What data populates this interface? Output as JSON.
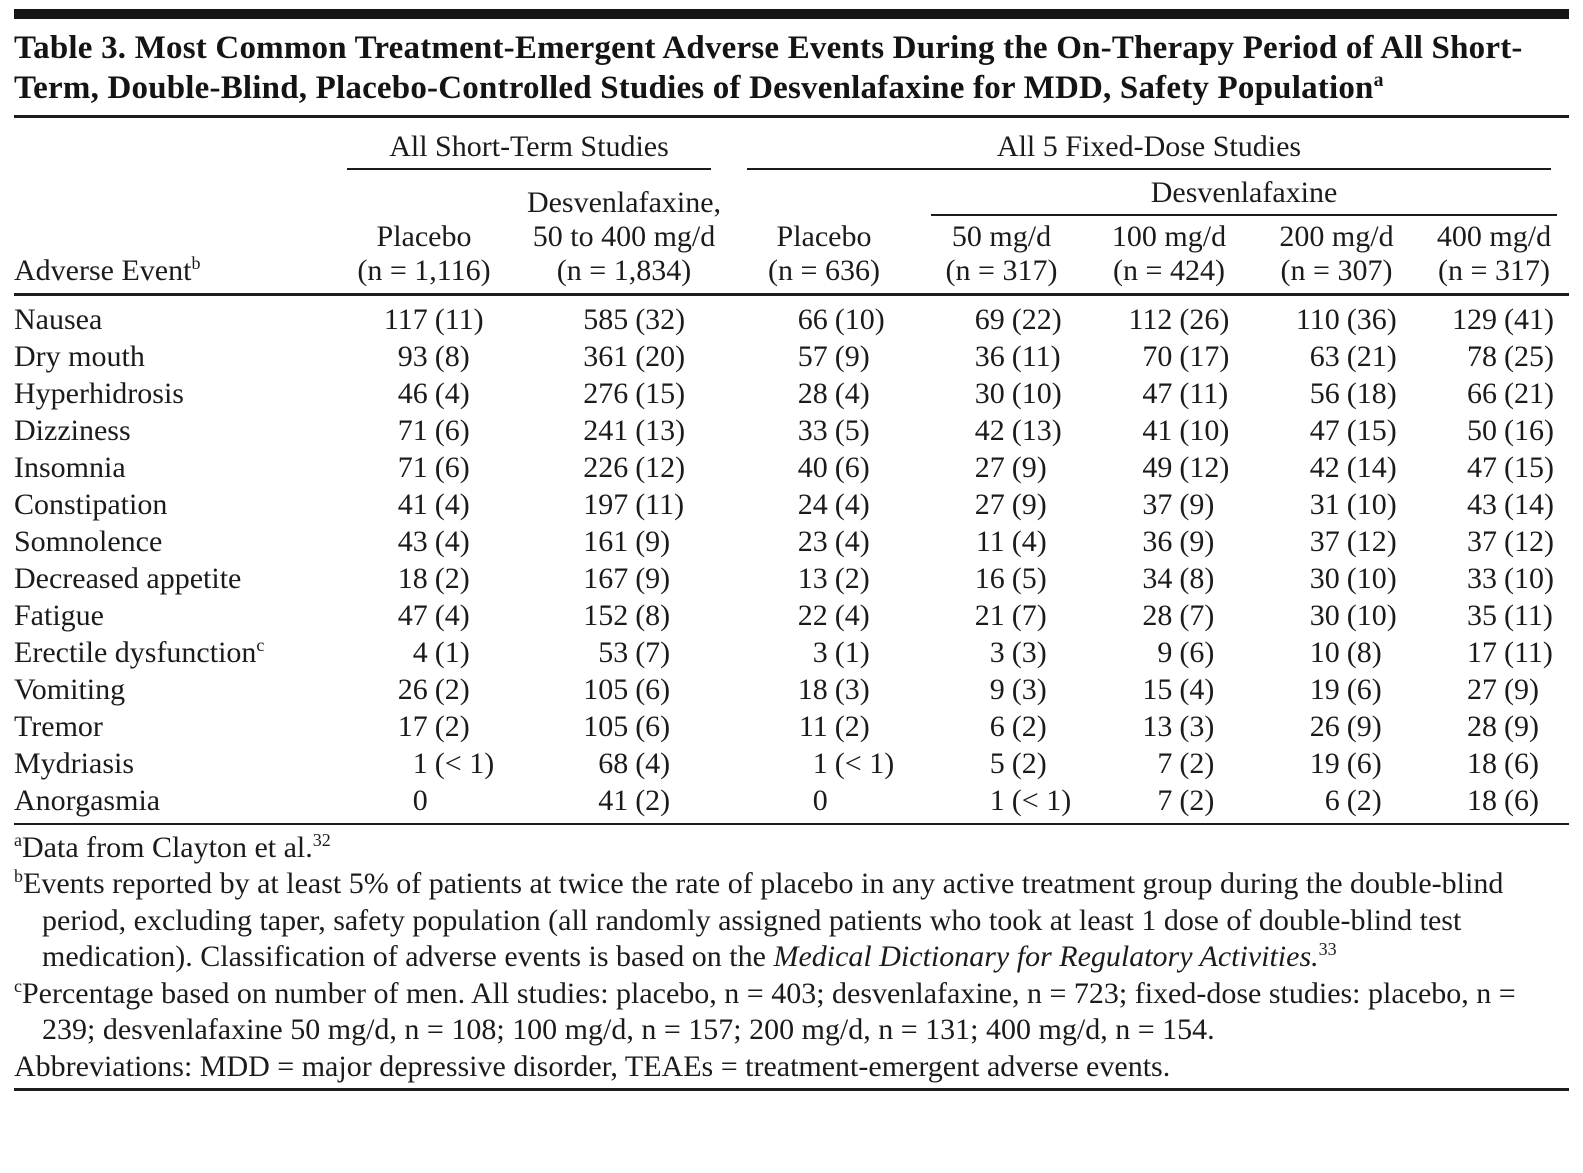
{
  "title": {
    "text": "Table 3. Most Common Treatment-Emergent Adverse Events During the On-Therapy Period of All Short-Term, Double-Blind, Placebo-Controlled Studies of Desvenlafaxine for MDD, Safety Population",
    "superscript": "a"
  },
  "table": {
    "spanners": {
      "short_term": "All Short-Term Studies",
      "fixed_dose": "All 5 Fixed-Dose Studies",
      "desvenlafaxine": "Desvenlafaxine"
    },
    "row_header": {
      "label": "Adverse Event",
      "superscript": "b"
    },
    "columns": [
      {
        "line1": "Placebo",
        "line2": "(n = 1,116)"
      },
      {
        "line1": "Desvenlafaxine,",
        "line2": "50 to 400 mg/d",
        "line3": "(n = 1,834)"
      },
      {
        "line1": "Placebo",
        "line2": "(n = 636)"
      },
      {
        "line1": "50 mg/d",
        "line2": "(n = 317)"
      },
      {
        "line1": "100 mg/d",
        "line2": "(n = 424)"
      },
      {
        "line1": "200 mg/d",
        "line2": "(n = 307)"
      },
      {
        "line1": "400 mg/d",
        "line2": "(n = 317)"
      }
    ],
    "rows": [
      {
        "event": "Nausea",
        "sup": "",
        "values": [
          "117 (11)",
          "585 (32)",
          "66 (10)",
          "69 (22)",
          "112 (26)",
          "110 (36)",
          "129 (41)"
        ]
      },
      {
        "event": "Dry mouth",
        "sup": "",
        "values": [
          "93 (8)",
          "361 (20)",
          "57 (9)",
          "36 (11)",
          "70 (17)",
          "63 (21)",
          "78 (25)"
        ]
      },
      {
        "event": "Hyperhidrosis",
        "sup": "",
        "values": [
          "46 (4)",
          "276 (15)",
          "28 (4)",
          "30 (10)",
          "47 (11)",
          "56 (18)",
          "66 (21)"
        ]
      },
      {
        "event": "Dizziness",
        "sup": "",
        "values": [
          "71 (6)",
          "241 (13)",
          "33 (5)",
          "42 (13)",
          "41 (10)",
          "47 (15)",
          "50 (16)"
        ]
      },
      {
        "event": "Insomnia",
        "sup": "",
        "values": [
          "71 (6)",
          "226 (12)",
          "40 (6)",
          "27 (9)",
          "49 (12)",
          "42 (14)",
          "47 (15)"
        ]
      },
      {
        "event": "Constipation",
        "sup": "",
        "values": [
          "41 (4)",
          "197 (11)",
          "24 (4)",
          "27 (9)",
          "37 (9)",
          "31 (10)",
          "43 (14)"
        ]
      },
      {
        "event": "Somnolence",
        "sup": "",
        "values": [
          "43 (4)",
          "161 (9)",
          "23 (4)",
          "11 (4)",
          "36 (9)",
          "37 (12)",
          "37 (12)"
        ]
      },
      {
        "event": "Decreased appetite",
        "sup": "",
        "values": [
          "18 (2)",
          "167 (9)",
          "13 (2)",
          "16 (5)",
          "34 (8)",
          "30 (10)",
          "33 (10)"
        ]
      },
      {
        "event": "Fatigue",
        "sup": "",
        "values": [
          "47 (4)",
          "152 (8)",
          "22 (4)",
          "21 (7)",
          "28 (7)",
          "30 (10)",
          "35 (11)"
        ]
      },
      {
        "event": "Erectile dysfunction",
        "sup": "c",
        "values": [
          "4 (1)",
          "53 (7)",
          "3 (1)",
          "3 (3)",
          "9 (6)",
          "10 (8)",
          "17 (11)"
        ]
      },
      {
        "event": "Vomiting",
        "sup": "",
        "values": [
          "26 (2)",
          "105 (6)",
          "18 (3)",
          "9 (3)",
          "15 (4)",
          "19 (6)",
          "27 (9)"
        ]
      },
      {
        "event": "Tremor",
        "sup": "",
        "values": [
          "17 (2)",
          "105 (6)",
          "11 (2)",
          "6 (2)",
          "13 (3)",
          "26 (9)",
          "28 (9)"
        ]
      },
      {
        "event": "Mydriasis",
        "sup": "",
        "values": [
          "1 (< 1)",
          "68 (4)",
          "1 (< 1)",
          "5 (2)",
          "7 (2)",
          "19 (6)",
          "18 (6)"
        ]
      },
      {
        "event": "Anorgasmia",
        "sup": "",
        "values": [
          "0",
          "41 (2)",
          "0",
          "1 (< 1)",
          "7 (2)",
          "6 (2)",
          "18 (6)"
        ]
      }
    ]
  },
  "footnotes": [
    {
      "name": "footnote-a",
      "segments": [
        {
          "t": "a",
          "s": "sup"
        },
        {
          "t": "Data from Clayton et al.",
          "s": "n"
        },
        {
          "t": "32",
          "s": "sup"
        }
      ]
    },
    {
      "name": "footnote-b",
      "segments": [
        {
          "t": "b",
          "s": "sup"
        },
        {
          "t": "Events reported by at least 5% of patients at twice the rate of placebo in any active treatment group during the double-blind period, excluding taper, safety population (all randomly assigned patients who took at least 1 dose of double-blind test medication). Classification of adverse events is based on the ",
          "s": "n"
        },
        {
          "t": "Medical Dictionary for Regulatory Activities.",
          "s": "i"
        },
        {
          "t": "33",
          "s": "sup"
        }
      ]
    },
    {
      "name": "footnote-c",
      "segments": [
        {
          "t": "c",
          "s": "sup"
        },
        {
          "t": "Percentage based on number of men. All studies: placebo, n = 403; desvenlafaxine, n = 723; fixed-dose studies: placebo, n = 239; desvenlafaxine 50 mg/d, n = 108; 100 mg/d, n = 157; 200 mg/d, n = 131; 400 mg/d, n = 154.",
          "s": "n"
        }
      ]
    },
    {
      "name": "abbreviations-note",
      "no_indent": true,
      "segments": [
        {
          "t": "Abbreviations: MDD = major depressive disorder, TEAEs = treatment-emergent adverse events.",
          "s": "n"
        }
      ]
    }
  ]
}
